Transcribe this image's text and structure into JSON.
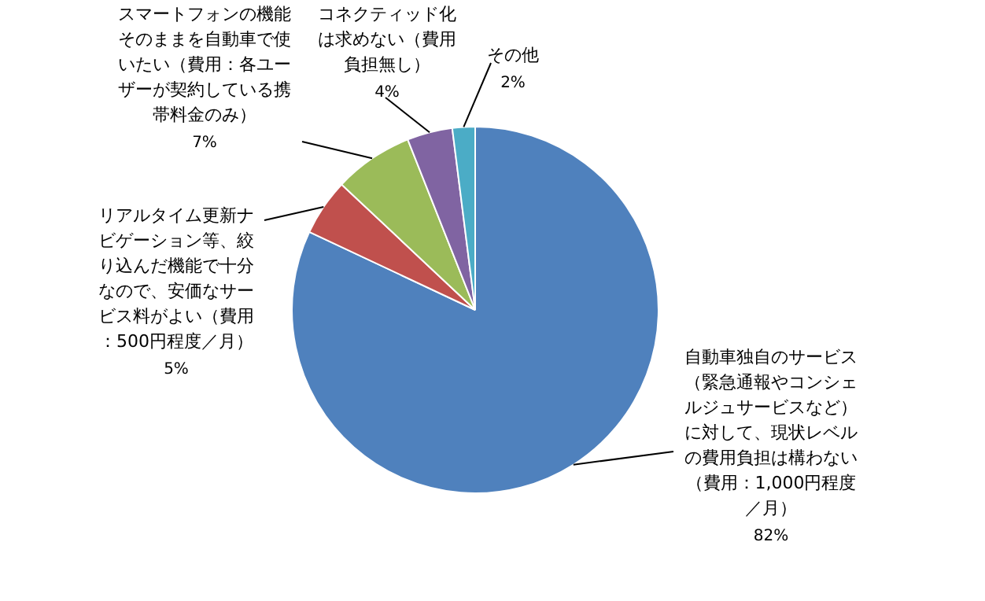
{
  "chart_data": {
    "type": "pie",
    "categories": [
      "自動車独自のサービス（緊急通報やコンシェルジュサービスなど）に対して、現状レベルの費用負担は構わない（費用：1,000円程度／月）",
      "リアルタイム更新ナビゲーション等、絞り込んだ機能で十分なので、安価なサービス料がよい（費用：500円程度／月）",
      "スマートフォンの機能そのままを自動車で使いたい（費用：各ユーザーが契約している携帯料金のみ）",
      "コネクティッド化は求めない（費用負担無し）",
      "その他"
    ],
    "values": [
      82,
      5,
      7,
      4,
      2
    ],
    "colors": [
      "#4f81bd",
      "#c0504d",
      "#9bbb59",
      "#8064a2",
      "#4bacc6"
    ],
    "value_labels": [
      "82%",
      "5%",
      "7%",
      "4%",
      "2%"
    ],
    "legend": false
  }
}
